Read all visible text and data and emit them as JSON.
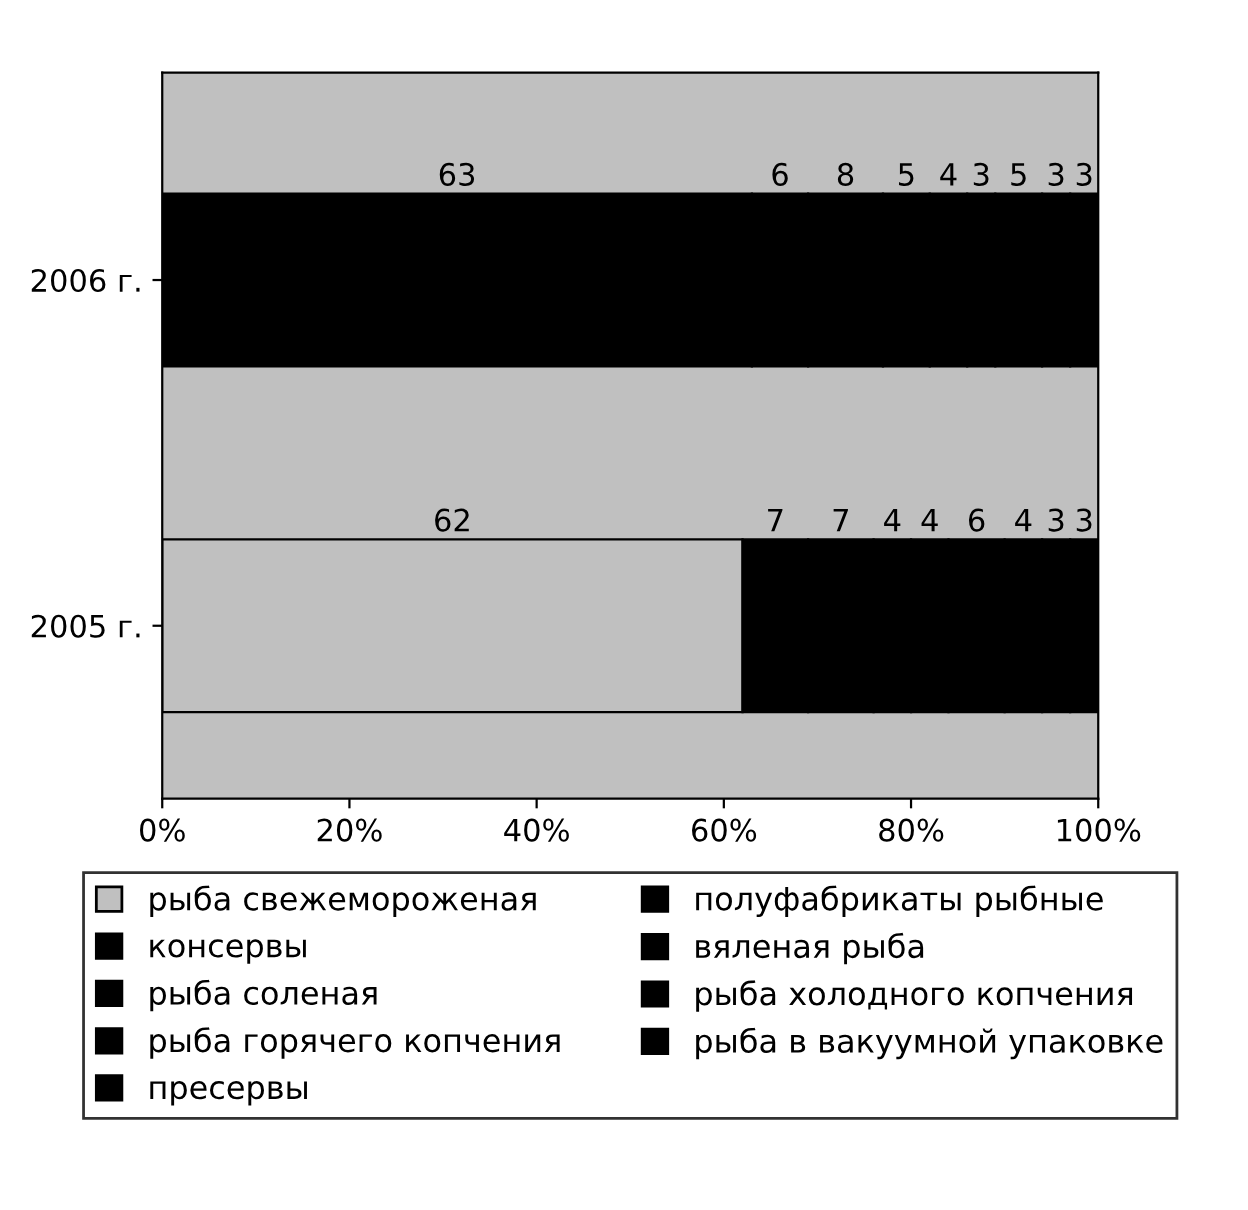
{
  "chart_data": {
    "type": "bar",
    "orientation": "horizontal",
    "stacked": true,
    "data_labels": true,
    "categories": [
      "2006 г.",
      "2005 г."
    ],
    "series": [
      {
        "name": "рыба свежемороженая",
        "color": "#c0c0c0",
        "colors": [
          "#000000",
          "#c0c0c0"
        ],
        "values": [
          63,
          62
        ]
      },
      {
        "name": "полуфабрикаты рыбные",
        "color": "#000000",
        "values": [
          6,
          7
        ]
      },
      {
        "name": "консервы",
        "color": "#000000",
        "values": [
          8,
          7
        ]
      },
      {
        "name": "вяленая рыба",
        "color": "#000000",
        "values": [
          5,
          4
        ]
      },
      {
        "name": "рыба соленая",
        "color": "#000000",
        "values": [
          4,
          4
        ]
      },
      {
        "name": "рыба холодного копчения",
        "color": "#000000",
        "values": [
          3,
          6
        ]
      },
      {
        "name": "рыба горячего копчения",
        "color": "#000000",
        "values": [
          5,
          4
        ]
      },
      {
        "name": "рыба в вакуумной упаковке",
        "color": "#000000",
        "values": [
          3,
          3
        ]
      },
      {
        "name": "пресервы",
        "color": "#000000",
        "values": [
          3,
          3
        ]
      }
    ],
    "xlim": [
      0,
      100
    ],
    "xticks": [
      {
        "value": 0,
        "label": "0%"
      },
      {
        "value": 20,
        "label": "20%"
      },
      {
        "value": 40,
        "label": "40%"
      },
      {
        "value": 60,
        "label": "60%"
      },
      {
        "value": 80,
        "label": "80%"
      },
      {
        "value": 100,
        "label": "100%"
      }
    ],
    "grid": false,
    "legend": "bottom"
  }
}
